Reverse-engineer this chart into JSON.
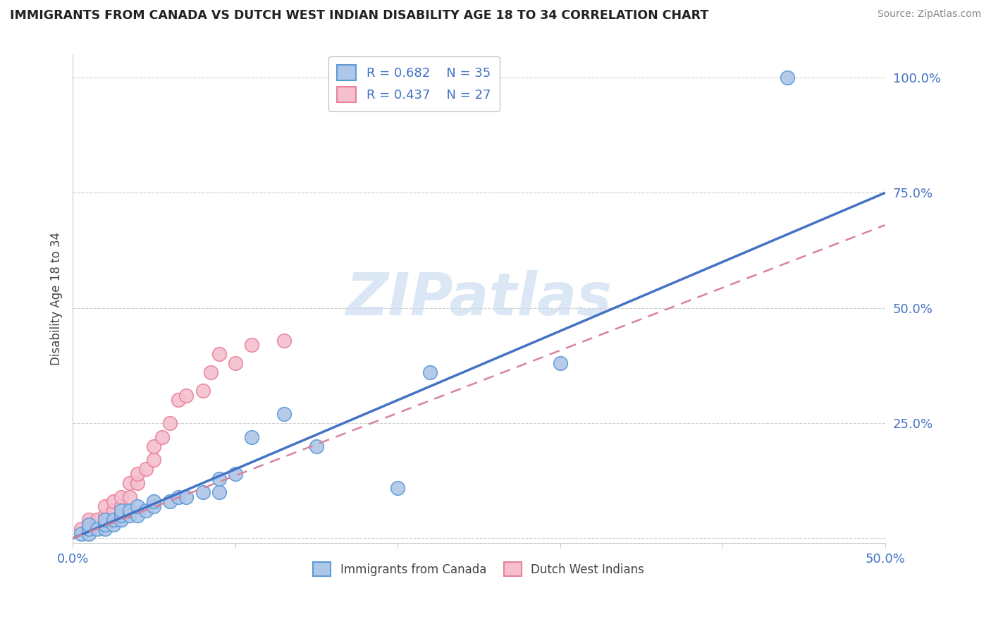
{
  "title": "IMMIGRANTS FROM CANADA VS DUTCH WEST INDIAN DISABILITY AGE 18 TO 34 CORRELATION CHART",
  "source": "Source: ZipAtlas.com",
  "ylabel": "Disability Age 18 to 34",
  "xlim": [
    0.0,
    0.5
  ],
  "ylim": [
    -0.01,
    1.05
  ],
  "xticks": [
    0.0,
    0.1,
    0.2,
    0.3,
    0.4,
    0.5
  ],
  "xtick_labels": [
    "0.0%",
    "",
    "",
    "",
    "",
    "50.0%"
  ],
  "ytick_positions": [
    0.0,
    0.25,
    0.5,
    0.75,
    1.0
  ],
  "ytick_labels": [
    "",
    "25.0%",
    "50.0%",
    "75.0%",
    "100.0%"
  ],
  "canada_R": 0.682,
  "canada_N": 35,
  "dutch_R": 0.437,
  "dutch_N": 27,
  "canada_color": "#aec6e8",
  "dutch_color": "#f5bfcf",
  "canada_edge_color": "#5b9bd5",
  "dutch_edge_color": "#e8829a",
  "canada_line_color": "#4472c4",
  "dutch_line_color": "#d9829a",
  "grid_color": "#d0d0d0",
  "watermark_color": "#ccddf0",
  "canada_scatter_x": [
    0.005,
    0.01,
    0.01,
    0.01,
    0.015,
    0.02,
    0.02,
    0.02,
    0.02,
    0.025,
    0.025,
    0.03,
    0.03,
    0.03,
    0.035,
    0.035,
    0.04,
    0.04,
    0.045,
    0.05,
    0.05,
    0.06,
    0.065,
    0.07,
    0.08,
    0.09,
    0.09,
    0.1,
    0.11,
    0.13,
    0.15,
    0.2,
    0.22,
    0.3,
    0.44
  ],
  "canada_scatter_y": [
    0.01,
    0.01,
    0.02,
    0.03,
    0.02,
    0.02,
    0.03,
    0.03,
    0.04,
    0.03,
    0.04,
    0.04,
    0.05,
    0.06,
    0.05,
    0.06,
    0.05,
    0.07,
    0.06,
    0.07,
    0.08,
    0.08,
    0.09,
    0.09,
    0.1,
    0.1,
    0.13,
    0.14,
    0.22,
    0.27,
    0.2,
    0.11,
    0.36,
    0.38,
    1.0
  ],
  "dutch_scatter_x": [
    0.005,
    0.01,
    0.01,
    0.015,
    0.02,
    0.02,
    0.025,
    0.025,
    0.03,
    0.03,
    0.035,
    0.035,
    0.04,
    0.04,
    0.045,
    0.05,
    0.05,
    0.055,
    0.06,
    0.065,
    0.07,
    0.08,
    0.085,
    0.09,
    0.1,
    0.11,
    0.13
  ],
  "dutch_scatter_y": [
    0.02,
    0.03,
    0.04,
    0.04,
    0.05,
    0.07,
    0.06,
    0.08,
    0.07,
    0.09,
    0.09,
    0.12,
    0.12,
    0.14,
    0.15,
    0.17,
    0.2,
    0.22,
    0.25,
    0.3,
    0.31,
    0.32,
    0.36,
    0.4,
    0.38,
    0.42,
    0.43
  ],
  "canada_line_x": [
    0.0,
    0.5
  ],
  "canada_line_y": [
    0.0,
    0.75
  ],
  "dutch_line_x": [
    0.0,
    0.5
  ],
  "dutch_line_y": [
    0.0,
    0.68
  ]
}
